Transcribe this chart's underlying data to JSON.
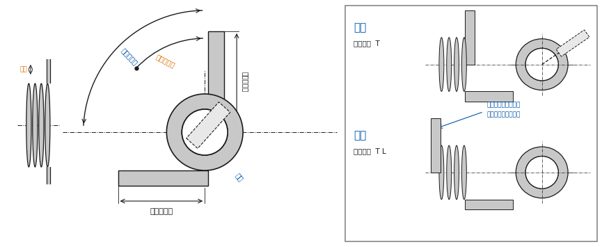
{
  "bg_color": "#ffffff",
  "line_color": "#1a1a1a",
  "blue_color": "#0055AA",
  "orange_color": "#E07000",
  "gray_fill": "#C8C8C8",
  "gray_dark": "#888888",
  "gray_light": "#E8E8E8",
  "label_senke": "線径",
  "label_jiyuji": "自由時耙度",
  "label_kyoyo": "許容変位量",
  "label_arm_v": "アーム長さ",
  "label_naike": "内径",
  "label_arm_h": "アーム長さ",
  "label_migi": "右巻",
  "label_hidari": "左巻",
  "label_migi_prod": "製品番号  T",
  "label_hidari_prod": "製品番号  T L",
  "label_arm_dir_line1": "アームの出る方向が",
  "label_arm_dir_line2": "右巻と異なります。"
}
